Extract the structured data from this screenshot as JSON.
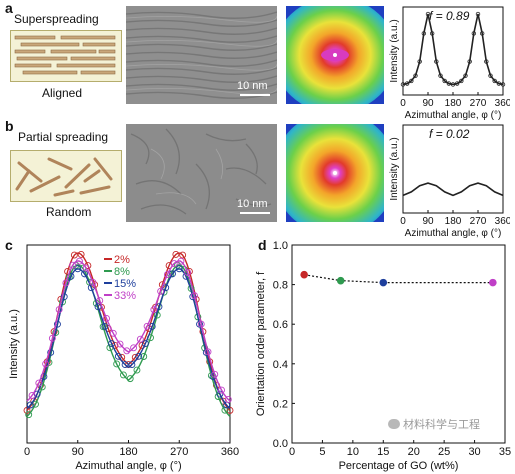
{
  "panels": {
    "a": {
      "label": "a",
      "schematic_title": "Superspreading",
      "schematic_caption": "Aligned",
      "scale_bar": "10 nm",
      "f_text": "f = 0.89",
      "chart_data": {
        "type": "line",
        "xlabel": "Azimuthal angle, φ (°)",
        "ylabel": "Intensity (a.u.)",
        "xticks": [
          "0",
          "90",
          "180",
          "270",
          "360"
        ],
        "xlim": [
          0,
          360
        ],
        "ylim": [
          0,
          1
        ],
        "x": [
          0,
          15,
          30,
          45,
          60,
          75,
          90,
          105,
          120,
          135,
          150,
          165,
          180,
          195,
          210,
          225,
          240,
          255,
          270,
          285,
          300,
          315,
          330,
          345,
          360
        ],
        "y": [
          0.12,
          0.13,
          0.16,
          0.22,
          0.38,
          0.7,
          0.92,
          0.7,
          0.38,
          0.22,
          0.16,
          0.13,
          0.12,
          0.13,
          0.16,
          0.22,
          0.38,
          0.7,
          0.92,
          0.7,
          0.38,
          0.22,
          0.16,
          0.13,
          0.12
        ]
      }
    },
    "b": {
      "label": "b",
      "schematic_title": "Partial spreading",
      "schematic_caption": "Random",
      "scale_bar": "10 nm",
      "f_text": "f = 0.02",
      "chart_data": {
        "type": "line",
        "xlabel": "Azimuthal angle, φ (°)",
        "ylabel": "Intensity (a.u.)",
        "xticks": [
          "0",
          "90",
          "180",
          "270",
          "360"
        ],
        "xlim": [
          0,
          360
        ],
        "ylim": [
          0,
          1
        ],
        "x": [
          0,
          30,
          60,
          90,
          120,
          150,
          180,
          210,
          240,
          270,
          300,
          330,
          360
        ],
        "y": [
          0.2,
          0.24,
          0.31,
          0.34,
          0.31,
          0.24,
          0.2,
          0.24,
          0.31,
          0.34,
          0.31,
          0.24,
          0.2
        ]
      }
    },
    "c": {
      "label": "c",
      "chart_data": {
        "type": "line",
        "xlabel": "Azimuthal angle, φ (°)",
        "ylabel": "Intensity (a.u.)",
        "xticks": [
          "0",
          "90",
          "180",
          "270",
          "360"
        ],
        "xlim": [
          0,
          360
        ],
        "ylim": [
          0,
          1
        ],
        "series": [
          {
            "name": "2%",
            "color": "#c62828",
            "base": 0.07,
            "valley": 0.36,
            "peak": 0.96
          },
          {
            "name": "8%",
            "color": "#2e9a4f",
            "base": 0.05,
            "valley": 0.28,
            "peak": 0.9
          },
          {
            "name": "15%",
            "color": "#1e3f9c",
            "base": 0.09,
            "valley": 0.35,
            "peak": 0.88
          },
          {
            "name": "33%",
            "color": "#c03fc7",
            "base": 0.12,
            "valley": 0.43,
            "peak": 0.92
          }
        ]
      }
    },
    "d": {
      "label": "d",
      "chart_data": {
        "type": "scatter",
        "xlabel": "Percentage of GO (wt%)",
        "ylabel": "Orientation order parameter, f",
        "xticks": [
          "0",
          "5",
          "10",
          "15",
          "20",
          "25",
          "30",
          "35"
        ],
        "yticks": [
          "0.0",
          "0.2",
          "0.4",
          "0.6",
          "0.8",
          "1.0"
        ],
        "xlim": [
          0,
          35
        ],
        "ylim": [
          0,
          1
        ],
        "x": [
          2,
          8,
          15,
          33
        ],
        "y": [
          0.85,
          0.82,
          0.81,
          0.81
        ],
        "colors": [
          "#c62828",
          "#2e9a4f",
          "#1e3f9c",
          "#c03fc7"
        ]
      }
    }
  },
  "watermark": "材料科学与工程"
}
